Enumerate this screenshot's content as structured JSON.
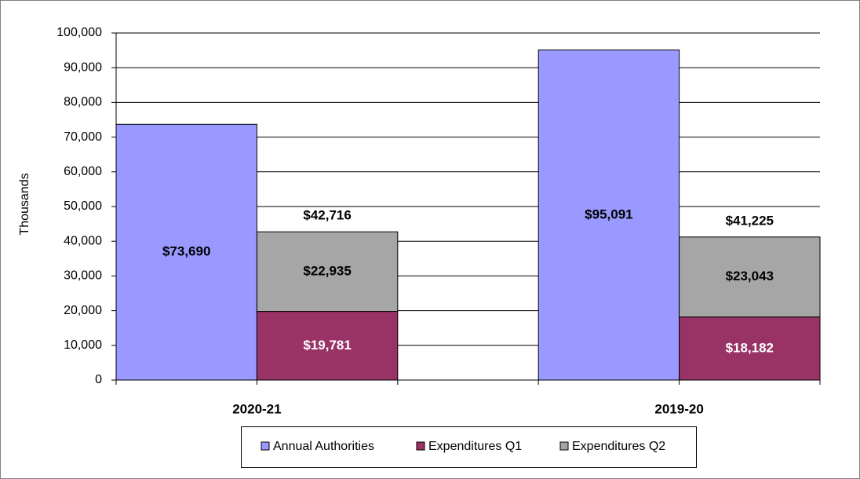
{
  "chart_data": {
    "type": "bar",
    "y_label": "Thousands",
    "categories": [
      "2020-21",
      "2019-20"
    ],
    "series": [
      {
        "name": "Annual Authorities",
        "color": "#9999ff",
        "values": [
          73690,
          95091
        ],
        "value_labels": [
          "$73,690",
          "$95,091"
        ]
      },
      {
        "name": "Expenditures Q1",
        "color": "#993366",
        "values": [
          19781,
          18182
        ],
        "value_labels": [
          "$19,781",
          "$18,182"
        ]
      },
      {
        "name": "Expenditures Q2",
        "color": "#a6a6a6",
        "values": [
          22935,
          23043
        ],
        "value_labels": [
          "$22,935",
          "$23,043"
        ]
      }
    ],
    "totals": [
      42716,
      41225
    ],
    "total_labels": [
      "$42,716",
      "$41,225"
    ],
    "ylim": [
      0,
      100000
    ],
    "yticks": [
      0,
      {
        "value": 10000,
        "label": "10,000"
      },
      {
        "value": 20000,
        "label": "20,000"
      },
      {
        "value": 30000,
        "label": "30,000"
      },
      {
        "value": 40000,
        "label": "40,000"
      },
      {
        "value": 50000,
        "label": "50,000"
      },
      {
        "value": 60000,
        "label": "60,000"
      },
      {
        "value": 70000,
        "label": "70,000"
      },
      {
        "value": 80000,
        "label": "80,000"
      },
      {
        "value": 90000,
        "label": "90,000"
      },
      {
        "value": 100000,
        "label": "100,000"
      }
    ],
    "grid": true,
    "legend": "bottom"
  }
}
